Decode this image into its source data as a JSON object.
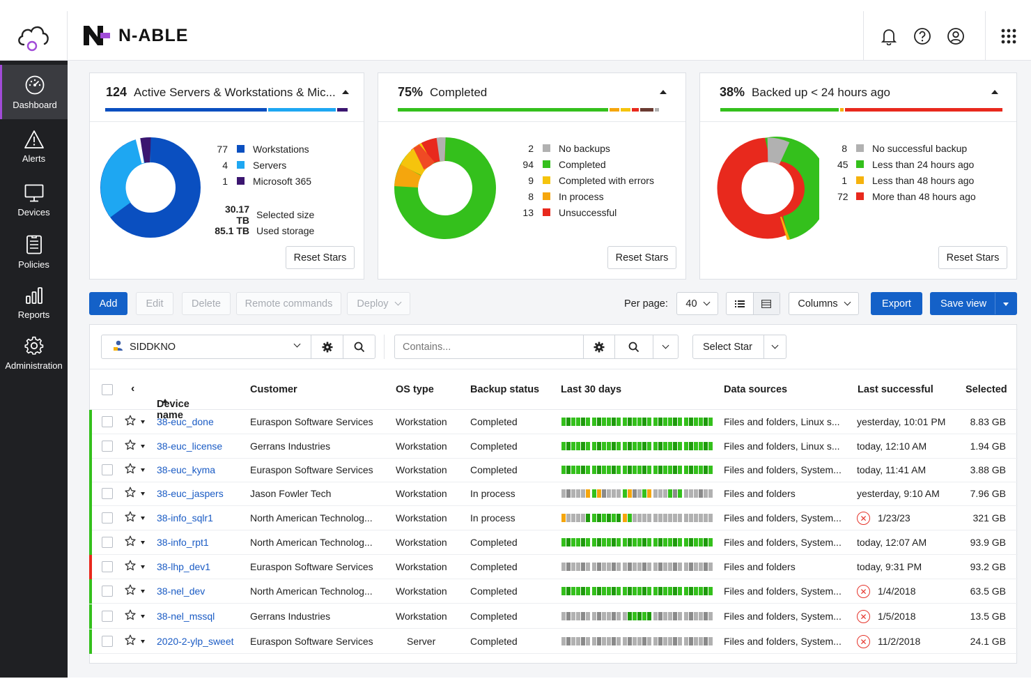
{
  "header": {
    "brand": "N-ABLE",
    "icons": [
      "bell-icon",
      "help-icon",
      "user-icon",
      "apps-grid-icon"
    ]
  },
  "sidebar": {
    "items": [
      {
        "label": "Dashboard",
        "icon": "dashboard-icon",
        "active": true
      },
      {
        "label": "Alerts",
        "icon": "alert-icon"
      },
      {
        "label": "Devices",
        "icon": "monitor-icon"
      },
      {
        "label": "Policies",
        "icon": "policy-icon"
      },
      {
        "label": "Reports",
        "icon": "reports-icon"
      },
      {
        "label": "Administration",
        "icon": "gear-icon"
      }
    ]
  },
  "cards": {
    "devices": {
      "count": "124",
      "title": "Active Servers & Workstations & Mic...",
      "legend": [
        {
          "num": "77",
          "label": "Workstations",
          "color": "#0a4fc0"
        },
        {
          "num": "4",
          "label": "Servers",
          "color": "#1ea7f2"
        },
        {
          "num": "1",
          "label": "Microsoft 365",
          "color": "#3b1670"
        }
      ],
      "selected_size_value": "30.17 TB",
      "selected_size_label": "Selected size",
      "used_storage_value": "85.1 TB",
      "used_storage_label": "Used storage",
      "reset_label": "Reset Stars"
    },
    "completed": {
      "percent": "75%",
      "title": "Completed",
      "legend": [
        {
          "num": "2",
          "label": "No backups",
          "color": "#b1b1b1"
        },
        {
          "num": "94",
          "label": "Completed",
          "color": "#34c01c"
        },
        {
          "num": "9",
          "label": "Completed with errors",
          "color": "#f5c40d"
        },
        {
          "num": "8",
          "label": "In process",
          "color": "#f5a60d"
        },
        {
          "num": "13",
          "label": "Unsuccessful",
          "color": "#e8291d"
        }
      ],
      "reset_label": "Reset Stars"
    },
    "backed": {
      "percent": "38%",
      "title": "Backed up < 24 hours ago",
      "legend": [
        {
          "num": "8",
          "label": "No successful backup",
          "color": "#b1b1b1"
        },
        {
          "num": "45",
          "label": "Less than 24 hours ago",
          "color": "#34c01c"
        },
        {
          "num": "1",
          "label": "Less than 48 hours ago",
          "color": "#f5b20d"
        },
        {
          "num": "72",
          "label": "More than 48 hours ago",
          "color": "#e8291d"
        }
      ],
      "reset_label": "Reset Stars"
    }
  },
  "toolbar": {
    "add": "Add",
    "edit": "Edit",
    "delete": "Delete",
    "remote": "Remote commands",
    "deploy": "Deploy",
    "per_page_label": "Per page:",
    "per_page_value": "40",
    "columns": "Columns",
    "export": "Export",
    "save_view": "Save view"
  },
  "filters": {
    "scope": "SIDDKNO",
    "search_placeholder": "Contains...",
    "select_star": "Select Star"
  },
  "table": {
    "columns": {
      "device": "Device name",
      "customer": "Customer",
      "os": "OS type",
      "backup": "Backup status",
      "last30": "Last 30 days",
      "sources": "Data sources",
      "last_success": "Last successful",
      "selected": "Selected"
    },
    "rows": [
      {
        "device": "38-euc_done",
        "customer": "Euraspon Software Services",
        "os": "Workstation",
        "backup": "Completed",
        "sources": "Files and folders, Linux s...",
        "last": "yesterday, 10:01 PM",
        "error": false,
        "size": "8.83 GB",
        "stripe": "#34c01c",
        "pattern": "all-green"
      },
      {
        "device": "38-euc_license",
        "customer": "Gerrans Industries",
        "os": "Workstation",
        "backup": "Completed",
        "sources": "Files and folders, Linux s...",
        "last": "today, 12:10 AM",
        "error": false,
        "size": "1.94 GB",
        "stripe": "#34c01c",
        "pattern": "all-green"
      },
      {
        "device": "38-euc_kyma",
        "customer": "Euraspon Software Services",
        "os": "Workstation",
        "backup": "Completed",
        "sources": "Files and folders, System...",
        "last": "today, 11:41 AM",
        "error": false,
        "size": "3.88 GB",
        "stripe": "#34c01c",
        "pattern": "all-green"
      },
      {
        "device": "38-euc_jaspers",
        "customer": "Jason Fowler Tech",
        "os": "Workstation",
        "backup": "In process",
        "sources": "Files and folders",
        "last": "yesterday, 9:10 AM",
        "error": false,
        "size": "7.96 GB",
        "stripe": "#34c01c",
        "pattern": "mixed"
      },
      {
        "device": "38-info_sqlr1",
        "customer": "North American Technolog...",
        "os": "Workstation",
        "backup": "In process",
        "sources": "Files and folders, System...",
        "last": "1/23/23",
        "error": true,
        "size": "321 GB",
        "stripe": "#34c01c",
        "pattern": "mid-green"
      },
      {
        "device": "38-info_rpt1",
        "customer": "North American Technolog...",
        "os": "Workstation",
        "backup": "Completed",
        "sources": "Files and folders, System...",
        "last": "today, 12:07 AM",
        "error": false,
        "size": "93.9 GB",
        "stripe": "#34c01c",
        "pattern": "all-green"
      },
      {
        "device": "38-lhp_dev1",
        "customer": "Euraspon Software Services",
        "os": "Workstation",
        "backup": "Completed",
        "sources": "Files and folders",
        "last": "today, 9:31 PM",
        "error": false,
        "size": "93.2 GB",
        "stripe": "#e8291d",
        "pattern": "all-grey"
      },
      {
        "device": "38-nel_dev",
        "customer": "North American Technolog...",
        "os": "Workstation",
        "backup": "Completed",
        "sources": "Files and folders, System...",
        "last": "1/4/2018",
        "error": true,
        "size": "63.5 GB",
        "stripe": "#34c01c",
        "pattern": "all-green"
      },
      {
        "device": "38-nel_mssql",
        "customer": "Gerrans Industries",
        "os": "Workstation",
        "backup": "Completed",
        "sources": "Files and folders, System...",
        "last": "1/5/2018",
        "error": true,
        "size": "13.5 GB",
        "stripe": "#34c01c",
        "pattern": "grey-green-mid"
      },
      {
        "device": "2020-2-ylp_sweet",
        "customer": "Euraspon Software Services",
        "os": "Server",
        "backup": "Completed",
        "sources": "Files and folders, System...",
        "last": "11/2/2018",
        "error": true,
        "size": "24.1 GB",
        "stripe": "#34c01c",
        "pattern": "all-grey"
      }
    ]
  }
}
